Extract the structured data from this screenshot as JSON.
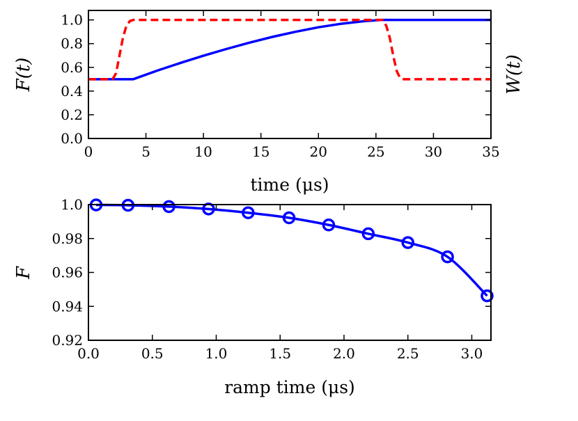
{
  "chart_data": [
    {
      "type": "line",
      "xlabel": "time (μs)",
      "ylabel": "F(t)",
      "ylabel_right": "W(t)",
      "xlim": [
        0,
        35
      ],
      "ylim": [
        0,
        1.08
      ],
      "xticks": [
        "0",
        "5",
        "10",
        "15",
        "20",
        "25",
        "30",
        "35"
      ],
      "yticks": [
        "0.0",
        "0.2",
        "0.4",
        "0.6",
        "0.8",
        "1.0"
      ],
      "grid": false,
      "series": [
        {
          "color": "#0000ff",
          "style": "solid",
          "x": [
            0,
            3.9,
            6,
            8,
            10,
            12,
            14,
            16,
            18,
            20,
            22,
            24,
            25.5,
            35
          ],
          "y": [
            0.5,
            0.5,
            0.573,
            0.637,
            0.698,
            0.755,
            0.808,
            0.857,
            0.9,
            0.938,
            0.968,
            0.99,
            1.0,
            1.0
          ]
        },
        {
          "color": "#ff0000",
          "style": "dashed",
          "x": [
            0,
            2.1,
            2.4,
            2.7,
            3.0,
            3.3,
            3.6,
            3.9,
            25.6,
            25.9,
            26.2,
            26.5,
            26.8,
            27.1,
            27.4,
            35
          ],
          "y": [
            0.5,
            0.5,
            0.55,
            0.7,
            0.85,
            0.95,
            0.99,
            1.0,
            1.0,
            0.95,
            0.85,
            0.7,
            0.57,
            0.51,
            0.5,
            0.5
          ]
        }
      ]
    },
    {
      "type": "line",
      "xlabel": "ramp time (μs)",
      "ylabel": "F",
      "xlim": [
        0,
        3.15
      ],
      "ylim": [
        0.92,
        1.0
      ],
      "xticks": [
        "0.0",
        "0.5",
        "1.0",
        "1.5",
        "2.0",
        "2.5",
        "3.0"
      ],
      "yticks": [
        "0.92",
        "0.94",
        "0.96",
        "0.98",
        "1.0"
      ],
      "grid": false,
      "series": [
        {
          "color": "#0000ff",
          "style": "solid",
          "marker": "circle",
          "x": [
            0.06,
            0.31,
            0.63,
            0.94,
            1.25,
            1.57,
            1.88,
            2.19,
            2.5,
            2.81,
            3.12
          ],
          "y": [
            0.9998,
            0.9996,
            0.9988,
            0.9974,
            0.9952,
            0.9922,
            0.988,
            0.9828,
            0.9776,
            0.9692,
            0.9462
          ]
        }
      ]
    }
  ]
}
